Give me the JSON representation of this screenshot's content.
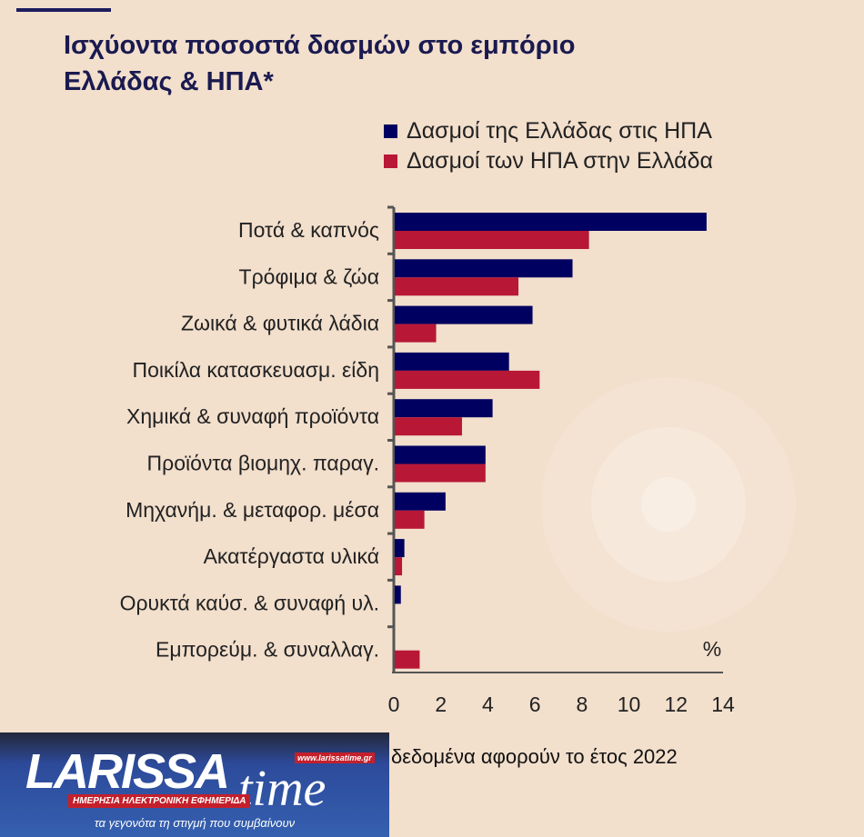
{
  "title": "Ισχύοντα ποσοστά δασμών στο εμπόριο Ελλάδας & ΗΠΑ*",
  "footnote": "δεδομένα αφορούν το έτος 2022",
  "logo": {
    "name": "LARISSA",
    "suffix": "time",
    "url": "www.larissatime.gr",
    "tagline": "ΗΜΕΡΗΣΙΑ ΗΛΕΚΤΡΟΝΙΚΗ ΕΦΗΜΕΡΙΔΑ",
    "slogan": "τα γεγονότα τη στιγμή που συμβαίνουν"
  },
  "chart_data": {
    "type": "bar",
    "orientation": "horizontal",
    "title": "Ισχύοντα ποσοστά δασμών στο εμπόριο Ελλάδας & ΗΠΑ*",
    "unit_label": "%",
    "categories": [
      "Ποτά & καπνός",
      "Τρόφιμα & ζώα",
      "Ζωικά & φυτικά λάδια",
      "Ποικίλα κατασκευασμ. είδη",
      "Χημικά & συναφή προϊόντα",
      "Προϊόντα βιομηχ. παραγ.",
      "Μηχανήμ. & μεταφορ. μέσα",
      "Ακατέργαστα υλικά",
      "Ορυκτά καύσ. & συναφή υλ.",
      "Εμπορεύμ. & συναλλαγ."
    ],
    "series": [
      {
        "name": "Δασμοί της Ελλάδας στις ΗΠΑ",
        "color": "#000060",
        "values": [
          13.3,
          7.6,
          5.9,
          4.9,
          4.2,
          3.9,
          2.2,
          0.45,
          0.3,
          0
        ]
      },
      {
        "name": "Δασμοί των ΗΠΑ στην Ελλάδα",
        "color": "#b81736",
        "values": [
          8.3,
          5.3,
          1.8,
          6.2,
          2.9,
          3.9,
          1.3,
          0.35,
          0,
          1.1
        ]
      }
    ],
    "xlim": [
      0,
      14
    ],
    "xticks": [
      "0",
      "2",
      "4",
      "6",
      "8",
      "10",
      "12",
      "14"
    ],
    "legend": "top-right",
    "grid": false
  }
}
